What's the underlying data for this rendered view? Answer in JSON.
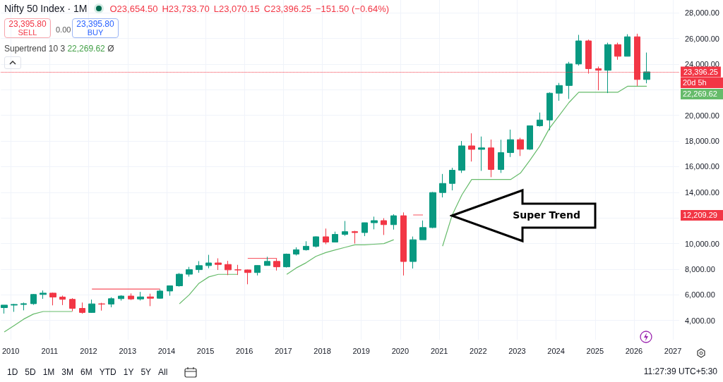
{
  "chart_data": {
    "type": "candlestick",
    "title": "Nifty 50 Index · 1M",
    "x": [
      "2009-11",
      "2010-02",
      "2010-05",
      "2010-08",
      "2010-11",
      "2011-02",
      "2011-05",
      "2011-08",
      "2011-11",
      "2012-02",
      "2012-05",
      "2012-08",
      "2012-11",
      "2013-02",
      "2013-05",
      "2013-08",
      "2013-11",
      "2014-02",
      "2014-05",
      "2014-08",
      "2014-11",
      "2015-02",
      "2015-05",
      "2015-08",
      "2015-11",
      "2016-02",
      "2016-05",
      "2016-08",
      "2016-11",
      "2017-02",
      "2017-05",
      "2017-08",
      "2017-11",
      "2018-02",
      "2018-05",
      "2018-08",
      "2018-11",
      "2019-02",
      "2019-05",
      "2019-08",
      "2019-11",
      "2020-02",
      "2020-05",
      "2020-08",
      "2020-11",
      "2021-02",
      "2021-05",
      "2021-08",
      "2021-11",
      "2022-02",
      "2022-05",
      "2022-08",
      "2022-11",
      "2023-02",
      "2023-05",
      "2023-08",
      "2023-11",
      "2024-02",
      "2024-05",
      "2024-08",
      "2024-11",
      "2025-02",
      "2025-05",
      "2025-08",
      "2025-11",
      "2026-02",
      "2026-05"
    ],
    "ohlc": [
      [
        5000,
        5200,
        4540,
        5200
      ],
      [
        5200,
        5300,
        4675,
        5250
      ],
      [
        5250,
        5400,
        4790,
        5310
      ],
      [
        5310,
        6070,
        5220,
        6030
      ],
      [
        6030,
        6340,
        5690,
        6135
      ],
      [
        6135,
        6180,
        5180,
        5830
      ],
      [
        5830,
        5940,
        5200,
        5650
      ],
      [
        5650,
        5740,
        4720,
        4945
      ],
      [
        4945,
        5400,
        4530,
        4625
      ],
      [
        4625,
        5630,
        4590,
        5295
      ],
      [
        5295,
        5380,
        4770,
        5280
      ],
      [
        5280,
        5815,
        5030,
        5700
      ],
      [
        5700,
        5970,
        5550,
        5905
      ],
      [
        5905,
        6110,
        5600,
        5680
      ],
      [
        5680,
        6230,
        5560,
        5840
      ],
      [
        5840,
        6090,
        5120,
        5735
      ],
      [
        5735,
        6420,
        5700,
        6300
      ],
      [
        6300,
        6720,
        5930,
        6705
      ],
      [
        6705,
        7700,
        6640,
        7610
      ],
      [
        7610,
        8180,
        7420,
        7965
      ],
      [
        7965,
        8630,
        7725,
        8280
      ],
      [
        8280,
        9120,
        8070,
        8490
      ],
      [
        8490,
        8850,
        7940,
        8370
      ],
      [
        8370,
        8650,
        7540,
        7950
      ],
      [
        7950,
        8340,
        7550,
        7945
      ],
      [
        7945,
        7970,
        6825,
        7740
      ],
      [
        7740,
        8310,
        7515,
        8290
      ],
      [
        8290,
        8970,
        8290,
        8610
      ],
      [
        8610,
        8810,
        7895,
        8185
      ],
      [
        8185,
        9220,
        8130,
        9175
      ],
      [
        9175,
        9710,
        9070,
        9520
      ],
      [
        9520,
        10180,
        9450,
        9790
      ],
      [
        9790,
        10560,
        9690,
        10530
      ],
      [
        10530,
        11170,
        9950,
        10115
      ],
      [
        10115,
        10930,
        10110,
        10715
      ],
      [
        10715,
        11760,
        10600,
        10930
      ],
      [
        10930,
        11000,
        10000,
        10860
      ],
      [
        10860,
        11630,
        10580,
        11625
      ],
      [
        11625,
        12100,
        11110,
        11790
      ],
      [
        11790,
        11980,
        10670,
        11475
      ],
      [
        11475,
        12290,
        11090,
        12170
      ],
      [
        12170,
        12430,
        7510,
        8600
      ],
      [
        8600,
        10550,
        8055,
        10300
      ],
      [
        10300,
        11800,
        10300,
        11250
      ],
      [
        11250,
        14025,
        11200,
        13980
      ],
      [
        13980,
        15430,
        13600,
        14690
      ],
      [
        14690,
        15915,
        14150,
        15720
      ],
      [
        15720,
        18000,
        15510,
        17620
      ],
      [
        17620,
        18600,
        16400,
        17350
      ],
      [
        17350,
        18350,
        15670,
        17465
      ],
      [
        17465,
        18115,
        15180,
        15780
      ],
      [
        15780,
        18100,
        15510,
        17095
      ],
      [
        17095,
        18890,
        16750,
        18105
      ],
      [
        18105,
        18250,
        16830,
        17360
      ],
      [
        17360,
        19200,
        17310,
        19190
      ],
      [
        19190,
        20220,
        19120,
        19640
      ],
      [
        19640,
        21800,
        18840,
        21730
      ],
      [
        21730,
        22530,
        21140,
        22330
      ],
      [
        22330,
        24175,
        21280,
        24010
      ],
      [
        24010,
        26280,
        23890,
        25810
      ],
      [
        25810,
        25910,
        23260,
        23645
      ],
      [
        23645,
        23810,
        21960,
        23520
      ],
      [
        23520,
        25670,
        21740,
        25520
      ],
      [
        25520,
        25670,
        24340,
        24610
      ],
      [
        24610,
        26330,
        24600,
        26130
      ],
      [
        26130,
        26370,
        22300,
        22800
      ],
      [
        22800,
        24900,
        22500,
        23396.25
      ]
    ],
    "colors": [
      "#089981",
      "#089981",
      "#089981",
      "#089981",
      "#089981",
      "#f23645",
      "#f23645",
      "#f23645",
      "#f23645",
      "#089981",
      "#f23645",
      "#089981",
      "#089981",
      "#f23645",
      "#089981",
      "#f23645",
      "#089981",
      "#089981",
      "#089981",
      "#089981",
      "#089981",
      "#089981",
      "#f23645",
      "#f23645",
      "#f23645",
      "#f23645",
      "#089981",
      "#089981",
      "#f23645",
      "#089981",
      "#089981",
      "#089981",
      "#089981",
      "#f23645",
      "#089981",
      "#089981",
      "#f23645",
      "#089981",
      "#089981",
      "#f23645",
      "#089981",
      "#f23645",
      "#089981",
      "#089981",
      "#089981",
      "#089981",
      "#089981",
      "#089981",
      "#f23645",
      "#089981",
      "#f23645",
      "#089981",
      "#089981",
      "#f23645",
      "#089981",
      "#089981",
      "#089981",
      "#089981",
      "#089981",
      "#089981",
      "#f23645",
      "#f23645",
      "#089981",
      "#f23645",
      "#089981",
      "#f23645",
      "#089981"
    ],
    "series": [
      {
        "type": "line",
        "color": "#66bb6a",
        "values": [
          3100,
          3600,
          4100,
          4500,
          4700,
          4700,
          4700,
          4700,
          null,
          null,
          null,
          null,
          null,
          null,
          null,
          null,
          null,
          null,
          5300,
          6000,
          6900,
          7400,
          7600,
          7600,
          7600,
          null,
          null,
          null,
          null,
          7600,
          8100,
          8500,
          9000,
          9300,
          9500,
          9700,
          9900,
          9900,
          9950,
          10000,
          10300,
          null,
          null,
          null,
          null,
          9800,
          12200,
          13800,
          15000,
          15000,
          15000,
          15000,
          15000,
          15500,
          16500,
          17600,
          19000,
          20000,
          21000,
          21800,
          21800,
          21800,
          21800,
          21800,
          22269.62,
          22269.62,
          22269.62
        ]
      },
      {
        "type": "line",
        "color": "#f7525f",
        "values": [
          null,
          null,
          null,
          null,
          null,
          null,
          null,
          null,
          null,
          6450,
          6450,
          6450,
          6450,
          6450,
          6450,
          6450,
          6450,
          null,
          null,
          null,
          null,
          null,
          null,
          null,
          null,
          8850,
          8850,
          8850,
          8850,
          null,
          null,
          null,
          null,
          null,
          null,
          null,
          null,
          null,
          null,
          null,
          null,
          null,
          12230,
          12230,
          null,
          null,
          null,
          null,
          null,
          null,
          null,
          null,
          null,
          null,
          null,
          null,
          null,
          null,
          null,
          null,
          null,
          null,
          null,
          null,
          null,
          null,
          null
        ]
      }
    ],
    "xlim": [
      "2009-10",
      "2027-03"
    ],
    "xticks": [
      "2010",
      "2011",
      "2012",
      "2013",
      "2014",
      "2015",
      "2016",
      "2017",
      "2018",
      "2019",
      "2020",
      "2021",
      "2022",
      "2023",
      "2024",
      "2025",
      "2026",
      "2027"
    ],
    "ylim": [
      2500,
      29000
    ],
    "yticks": [
      {
        "value": 4000,
        "label": "4,000.00"
      },
      {
        "value": 6000,
        "label": "6,000.00"
      },
      {
        "value": 8000,
        "label": "8,000.00"
      },
      {
        "value": 10000,
        "label": "10,000.00"
      },
      {
        "value": 12000,
        "label": null
      },
      {
        "value": 14000,
        "label": "14,000.00"
      },
      {
        "value": 16000,
        "label": "16,000.00"
      },
      {
        "value": 18000,
        "label": "18,000.00"
      },
      {
        "value": 20000,
        "label": "20,000.00"
      },
      {
        "value": 22000,
        "label": null
      },
      {
        "value": 24000,
        "label": "24,000.00"
      },
      {
        "value": 26000,
        "label": "26,000.00"
      },
      {
        "value": 28000,
        "label": "28,000.00"
      }
    ],
    "grid": true,
    "ref_lines": [
      {
        "axis": "y",
        "value": 23396.25,
        "label": "23,396.25",
        "color": "#f23645",
        "line_style": "dotted"
      }
    ],
    "annotations": [
      "O23,654.50",
      "H23,733.70",
      "L23,070.15",
      "C23,396.25",
      "−151.50 (−0.64%)",
      "23,395.80",
      "SELL",
      "0.00",
      "23,395.80",
      "BUY",
      "Supertrend 10 3",
      "22,269.62",
      "Ø",
      "Super Trend",
      "20d 5h",
      "22,269.62",
      "12,209.29",
      "1D",
      "5D",
      "1M",
      "3M",
      "6M",
      "YTD",
      "1Y",
      "5Y",
      "All",
      "11:27:39 UTC+5:30"
    ]
  }
}
